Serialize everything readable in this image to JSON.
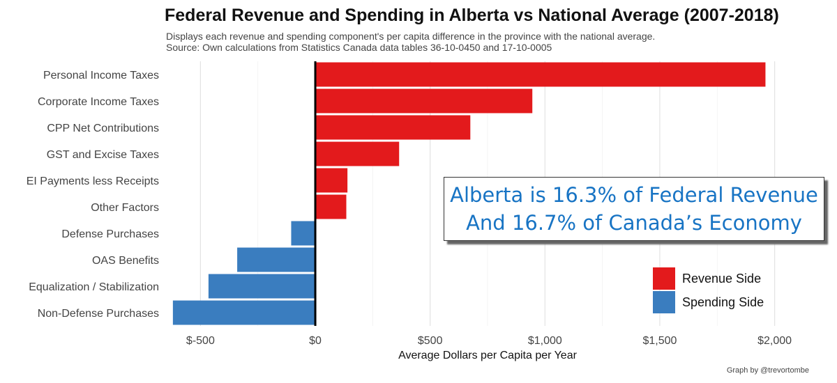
{
  "header": {
    "title": "Federal Revenue and Spending in Alberta vs National Average (2007-2018)",
    "subtitle_line1": "Displays each revenue and spending component's per capita difference in the province with the national average.",
    "subtitle_line2": "Source: Own calculations from Statistics Canada data tables 36-10-0450 and 17-10-0005"
  },
  "callout": {
    "line1": "Alberta is 16.3% of Federal Revenue",
    "line2": "And 16.7% of Canada’s Economy"
  },
  "credit": "Graph by @trevortombe",
  "colors": {
    "revenue": "#e31a1c",
    "spending": "#3a7dbf"
  },
  "chart_data": {
    "type": "bar",
    "orientation": "horizontal",
    "title": "Federal Revenue and Spending in Alberta vs National Average (2007-2018)",
    "xlabel": "Average Dollars per Capita per Year",
    "ylabel": "",
    "xlim": [
      -620,
      2000
    ],
    "x_ticks": [
      -500,
      0,
      500,
      1000,
      1500,
      2000
    ],
    "x_tick_labels": [
      "$-500",
      "$0",
      "$500",
      "$1,000",
      "$1,500",
      "$2,000"
    ],
    "grid": true,
    "legend_position": "bottom-right",
    "categories": [
      "Personal Income Taxes",
      "Corporate Income Taxes",
      "CPP Net Contributions",
      "GST and Excise Taxes",
      "EI Payments less Receipts",
      "Other Factors",
      "Defense Purchases",
      "OAS Benefits",
      "Equalization / Stabilization",
      "Non-Defense Purchases"
    ],
    "values": [
      1960,
      945,
      675,
      365,
      140,
      135,
      -105,
      -340,
      -465,
      -620
    ],
    "groups": [
      "Revenue Side",
      "Revenue Side",
      "Revenue Side",
      "Revenue Side",
      "Revenue Side",
      "Revenue Side",
      "Spending Side",
      "Spending Side",
      "Spending Side",
      "Spending Side"
    ],
    "legend": [
      {
        "name": "Revenue Side",
        "color": "#e31a1c"
      },
      {
        "name": "Spending Side",
        "color": "#3a7dbf"
      }
    ]
  }
}
